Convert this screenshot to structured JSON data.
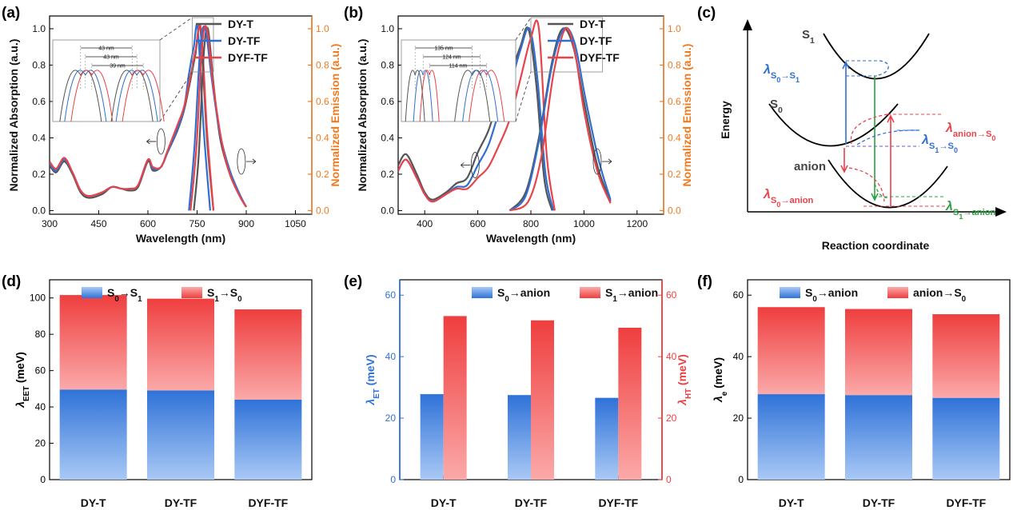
{
  "panels": {
    "a": "(a)",
    "b": "(b)",
    "c": "(c)",
    "d": "(d)",
    "e": "(e)",
    "f": "(f)"
  },
  "colors": {
    "DY-T": "#555555",
    "DY-TF": "#2f6fd0",
    "DYF-TF": "#e8434a",
    "emission_axis": "#f07a1f",
    "blue_bar": "#2f72d8",
    "red_bar": "#ef3e3e"
  },
  "chart_data": [
    {
      "id": "a",
      "type": "line",
      "xlabel": "Wavelength (nm)",
      "ylabel": "Normalized Absorption (a.u.)",
      "y2label": "Normalized Emission (a.u.)",
      "xlim": [
        300,
        1100
      ],
      "ylim": [
        -0.02,
        1.07
      ],
      "y2lim": [
        -0.02,
        1.07
      ],
      "xticks": [
        300,
        450,
        600,
        750,
        900,
        1050
      ],
      "yticks": [
        0.0,
        0.2,
        0.4,
        0.6,
        0.8,
        1.0
      ],
      "legend": [
        "DY-T",
        "DY-TF",
        "DYF-TF"
      ],
      "legend_position": "top-right",
      "inset_labels": [
        "43 nm",
        "43 nm",
        "39 nm"
      ],
      "series": [
        {
          "name": "DY-T",
          "role": "absorption",
          "x": [
            300,
            320,
            345,
            370,
            395,
            420,
            460,
            490,
            520,
            545,
            570,
            600,
            615,
            640,
            660,
            690,
            710,
            730,
            745,
            760,
            780,
            800
          ],
          "y": [
            0.25,
            0.21,
            0.27,
            0.2,
            0.1,
            0.07,
            0.09,
            0.13,
            0.12,
            0.11,
            0.13,
            0.27,
            0.22,
            0.24,
            0.32,
            0.44,
            0.55,
            0.72,
            0.86,
            1.0,
            0.4,
            0.0
          ]
        },
        {
          "name": "DY-TF",
          "role": "absorption",
          "x": [
            300,
            320,
            345,
            370,
            395,
            420,
            460,
            490,
            520,
            545,
            570,
            600,
            615,
            640,
            660,
            690,
            710,
            725,
            740,
            752,
            770,
            790
          ],
          "y": [
            0.26,
            0.22,
            0.28,
            0.21,
            0.11,
            0.08,
            0.1,
            0.13,
            0.12,
            0.12,
            0.14,
            0.28,
            0.23,
            0.24,
            0.32,
            0.45,
            0.56,
            0.75,
            0.9,
            1.0,
            0.45,
            0.0
          ]
        },
        {
          "name": "DYF-TF",
          "role": "absorption",
          "x": [
            300,
            320,
            345,
            370,
            395,
            420,
            460,
            490,
            520,
            545,
            570,
            600,
            615,
            640,
            660,
            690,
            710,
            730,
            745,
            762,
            780,
            800
          ],
          "y": [
            0.27,
            0.23,
            0.29,
            0.21,
            0.11,
            0.08,
            0.1,
            0.13,
            0.12,
            0.12,
            0.14,
            0.28,
            0.24,
            0.24,
            0.33,
            0.47,
            0.57,
            0.74,
            0.88,
            1.0,
            0.45,
            0.0
          ]
        },
        {
          "name": "DY-T",
          "role": "emission",
          "x": [
            740,
            755,
            770,
            783,
            800,
            820,
            850,
            880,
            900
          ],
          "y": [
            0.0,
            0.3,
            0.85,
            1.0,
            0.7,
            0.4,
            0.2,
            0.08,
            0.02
          ]
        },
        {
          "name": "DY-TF",
          "role": "emission",
          "x": [
            725,
            742,
            760,
            775,
            795,
            820,
            850,
            880,
            900
          ],
          "y": [
            0.0,
            0.35,
            0.9,
            1.0,
            0.72,
            0.42,
            0.22,
            0.09,
            0.02
          ]
        },
        {
          "name": "DYF-TF",
          "role": "emission",
          "x": [
            730,
            748,
            765,
            780,
            800,
            825,
            850,
            880,
            900
          ],
          "y": [
            0.0,
            0.35,
            0.9,
            1.0,
            0.68,
            0.38,
            0.2,
            0.08,
            0.02
          ]
        }
      ]
    },
    {
      "id": "b",
      "type": "line",
      "xlabel": "Wavelength (nm)",
      "ylabel": "Normalized Absorption (a.u.)",
      "y2label": "Normalized Emission (a.u.)",
      "xlim": [
        300,
        1300
      ],
      "ylim": [
        -0.02,
        1.07
      ],
      "y2lim": [
        -0.02,
        1.07
      ],
      "xticks": [
        400,
        600,
        800,
        1000,
        1200
      ],
      "yticks": [
        0.0,
        0.2,
        0.4,
        0.6,
        0.8,
        1.0
      ],
      "legend": [
        "DY-T",
        "DY-TF",
        "DYF-TF"
      ],
      "legend_position": "top-right",
      "inset_labels": [
        "135 nm",
        "124 nm",
        "114 nm"
      ],
      "series": [
        {
          "name": "DY-T",
          "role": "absorption",
          "x": [
            300,
            330,
            370,
            400,
            430,
            480,
            520,
            560,
            600,
            640,
            680,
            720,
            760,
            790,
            820,
            850,
            880
          ],
          "y": [
            0.25,
            0.31,
            0.2,
            0.1,
            0.06,
            0.1,
            0.15,
            0.18,
            0.32,
            0.44,
            0.62,
            0.74,
            0.9,
            1.0,
            0.7,
            0.18,
            0.0
          ]
        },
        {
          "name": "DY-TF",
          "role": "absorption",
          "x": [
            300,
            330,
            370,
            400,
            430,
            480,
            520,
            560,
            600,
            640,
            680,
            720,
            760,
            795,
            825,
            855,
            885
          ],
          "y": [
            0.22,
            0.28,
            0.18,
            0.09,
            0.05,
            0.09,
            0.13,
            0.14,
            0.25,
            0.36,
            0.54,
            0.68,
            0.88,
            1.0,
            0.72,
            0.2,
            0.0
          ]
        },
        {
          "name": "DYF-TF",
          "role": "absorption",
          "x": [
            300,
            330,
            370,
            400,
            430,
            480,
            520,
            560,
            600,
            640,
            680,
            720,
            760,
            800,
            830,
            860,
            890
          ],
          "y": [
            0.22,
            0.28,
            0.18,
            0.09,
            0.05,
            0.09,
            0.12,
            0.12,
            0.18,
            0.24,
            0.36,
            0.5,
            0.72,
            0.95,
            1.0,
            0.3,
            0.0
          ]
        },
        {
          "name": "DY-T",
          "role": "emission",
          "x": [
            720,
            780,
            830,
            880,
            920,
            960,
            1000,
            1050,
            1100
          ],
          "y": [
            0.0,
            0.1,
            0.4,
            0.82,
            1.0,
            0.9,
            0.6,
            0.25,
            0.05
          ]
        },
        {
          "name": "DY-TF",
          "role": "emission",
          "x": [
            720,
            780,
            830,
            880,
            925,
            965,
            1005,
            1055,
            1100
          ],
          "y": [
            0.0,
            0.08,
            0.38,
            0.8,
            1.0,
            0.92,
            0.62,
            0.28,
            0.06
          ]
        },
        {
          "name": "DYF-TF",
          "role": "emission",
          "x": [
            720,
            790,
            840,
            885,
            930,
            965,
            1000,
            1050,
            1100
          ],
          "y": [
            0.0,
            0.05,
            0.3,
            0.75,
            1.0,
            0.88,
            0.55,
            0.22,
            0.04
          ]
        }
      ]
    },
    {
      "id": "d",
      "type": "bar",
      "stacked": true,
      "categories": [
        "DY-T",
        "DY-TF",
        "DYF-TF"
      ],
      "ylabel": "λ",
      "ylabel_sub": "EET",
      "ylabel_unit": " (meV)",
      "ylim": [
        0,
        110
      ],
      "yticks": [
        0,
        20,
        40,
        60,
        80,
        100
      ],
      "legend_position": "top",
      "series": [
        {
          "name": "S0→S1",
          "label": "S",
          "sub1": "0",
          "mid": "→S",
          "sub2": "1",
          "values": [
            49.6,
            49.1,
            44.0
          ]
        },
        {
          "name": "S1→S0",
          "label": "S",
          "sub1": "1",
          "mid": "→S",
          "sub2": "0",
          "values": [
            52.0,
            50.5,
            49.7
          ]
        }
      ]
    },
    {
      "id": "e",
      "type": "bar",
      "stacked": false,
      "dual_axis": true,
      "categories": [
        "DY-T",
        "DY-TF",
        "DYF-TF"
      ],
      "ylabel": "λ",
      "ylabel_sub": "ET",
      "ylabel_unit": " (meV)",
      "y2label": "λ",
      "y2label_sub": "HT",
      "y2label_unit": " (meV)",
      "ylim": [
        0,
        65
      ],
      "y2lim": [
        0,
        65
      ],
      "yticks": [
        0,
        20,
        40,
        60
      ],
      "y2ticks": [
        0,
        20,
        40,
        60
      ],
      "legend_position": "top",
      "series": [
        {
          "name": "S0→anion",
          "label": "S",
          "sub1": "0",
          "mid": "→anion",
          "sub2": "",
          "axis": "left",
          "values": [
            27.8,
            27.5,
            26.6
          ]
        },
        {
          "name": "S1→anion",
          "label": "S",
          "sub1": "1",
          "mid": "→anion",
          "sub2": "",
          "axis": "right",
          "values": [
            53.2,
            51.8,
            49.4
          ]
        }
      ]
    },
    {
      "id": "f",
      "type": "bar",
      "stacked": true,
      "categories": [
        "DY-T",
        "DY-TF",
        "DYF-TF"
      ],
      "ylabel": "λ",
      "ylabel_sub": "e",
      "ylabel_unit": " (meV)",
      "ylim": [
        0,
        65
      ],
      "yticks": [
        0,
        20,
        40,
        60
      ],
      "legend_position": "top",
      "series": [
        {
          "name": "S0→anion",
          "label": "S",
          "sub1": "0",
          "mid": "→anion",
          "sub2": "",
          "values": [
            27.8,
            27.5,
            26.6
          ]
        },
        {
          "name": "anion→S0",
          "label": "anion→S",
          "sub1": "",
          "mid": "",
          "sub2": "0",
          "values": [
            28.3,
            28.0,
            27.2
          ]
        }
      ]
    }
  ],
  "diagram_c": {
    "ylabel": "Energy",
    "xlabel": "Reaction coordinate",
    "state_labels": {
      "s1": "S",
      "s1_sub": "1",
      "s0": "S",
      "s0_sub": "0",
      "anion": "anion"
    },
    "lambda_labels": [
      {
        "id": "s0s1",
        "text": "λ",
        "sub": "S0→S1",
        "color": "#2f6fd0"
      },
      {
        "id": "anions0",
        "text": "λ",
        "sub": "anion→S0",
        "color": "#e8434a"
      },
      {
        "id": "s1s0",
        "text": "λ",
        "sub": "S1→S0",
        "color": "#2f6fd0"
      },
      {
        "id": "s0anion",
        "text": "λ",
        "sub": "S0→anion",
        "color": "#e8434a"
      },
      {
        "id": "s1anion",
        "text": "λ",
        "sub": "S1→anion",
        "color": "#2ea043"
      }
    ]
  }
}
